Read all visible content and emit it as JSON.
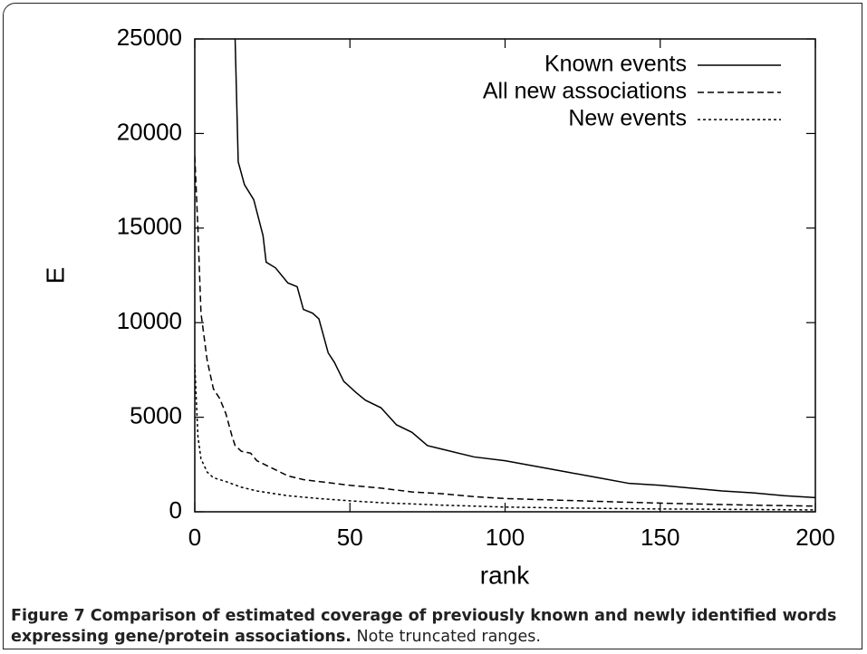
{
  "chart_data": {
    "type": "line",
    "x_label": "rank",
    "y_label": "E",
    "xlim": [
      0,
      200
    ],
    "ylim": [
      0,
      25000
    ],
    "xticks": [
      0,
      50,
      100,
      150,
      200
    ],
    "yticks": [
      0,
      5000,
      10000,
      15000,
      20000,
      25000
    ],
    "grid": false,
    "legend_position": "upper-right",
    "series": [
      {
        "name": "Known events",
        "color": "#000000",
        "dash": "solid",
        "x": [
          13,
          14,
          16,
          19,
          22,
          23,
          26,
          30,
          33,
          35,
          38,
          40,
          43,
          45,
          48,
          52,
          55,
          60,
          65,
          70,
          75,
          80,
          90,
          100,
          110,
          120,
          130,
          140,
          150,
          160,
          170,
          180,
          190,
          200
        ],
        "values": [
          25000,
          18500,
          17300,
          16500,
          14600,
          13200,
          12900,
          12100,
          11900,
          10700,
          10500,
          10200,
          8400,
          7900,
          6900,
          6300,
          5900,
          5500,
          4600,
          4200,
          3500,
          3300,
          2900,
          2700,
          2400,
          2100,
          1800,
          1500,
          1400,
          1250,
          1100,
          1000,
          850,
          750
        ]
      },
      {
        "name": "All new associations",
        "color": "#000000",
        "dash": "dashed",
        "x": [
          0,
          1,
          2,
          4,
          6,
          8,
          10,
          12,
          13,
          15,
          18,
          20,
          25,
          30,
          35,
          40,
          50,
          60,
          70,
          80,
          90,
          100,
          120,
          140,
          160,
          180,
          200
        ],
        "values": [
          18800,
          15000,
          10500,
          8000,
          6500,
          6000,
          5200,
          4000,
          3500,
          3200,
          3100,
          2700,
          2300,
          1900,
          1700,
          1600,
          1400,
          1250,
          1050,
          950,
          800,
          700,
          600,
          500,
          420,
          350,
          300
        ]
      },
      {
        "name": "New events",
        "color": "#000000",
        "dash": "dotted",
        "x": [
          0,
          1,
          2,
          4,
          6,
          10,
          15,
          20,
          30,
          40,
          50,
          60,
          80,
          100,
          120,
          150,
          200
        ],
        "values": [
          7800,
          4000,
          2800,
          2100,
          1800,
          1600,
          1300,
          1100,
          850,
          700,
          580,
          480,
          350,
          250,
          200,
          150,
          100
        ]
      }
    ]
  },
  "caption": {
    "title": "Figure 7 Comparison of estimated coverage of previously known and newly identified words expressing gene/protein associations.",
    "note": "Note truncated ranges."
  }
}
